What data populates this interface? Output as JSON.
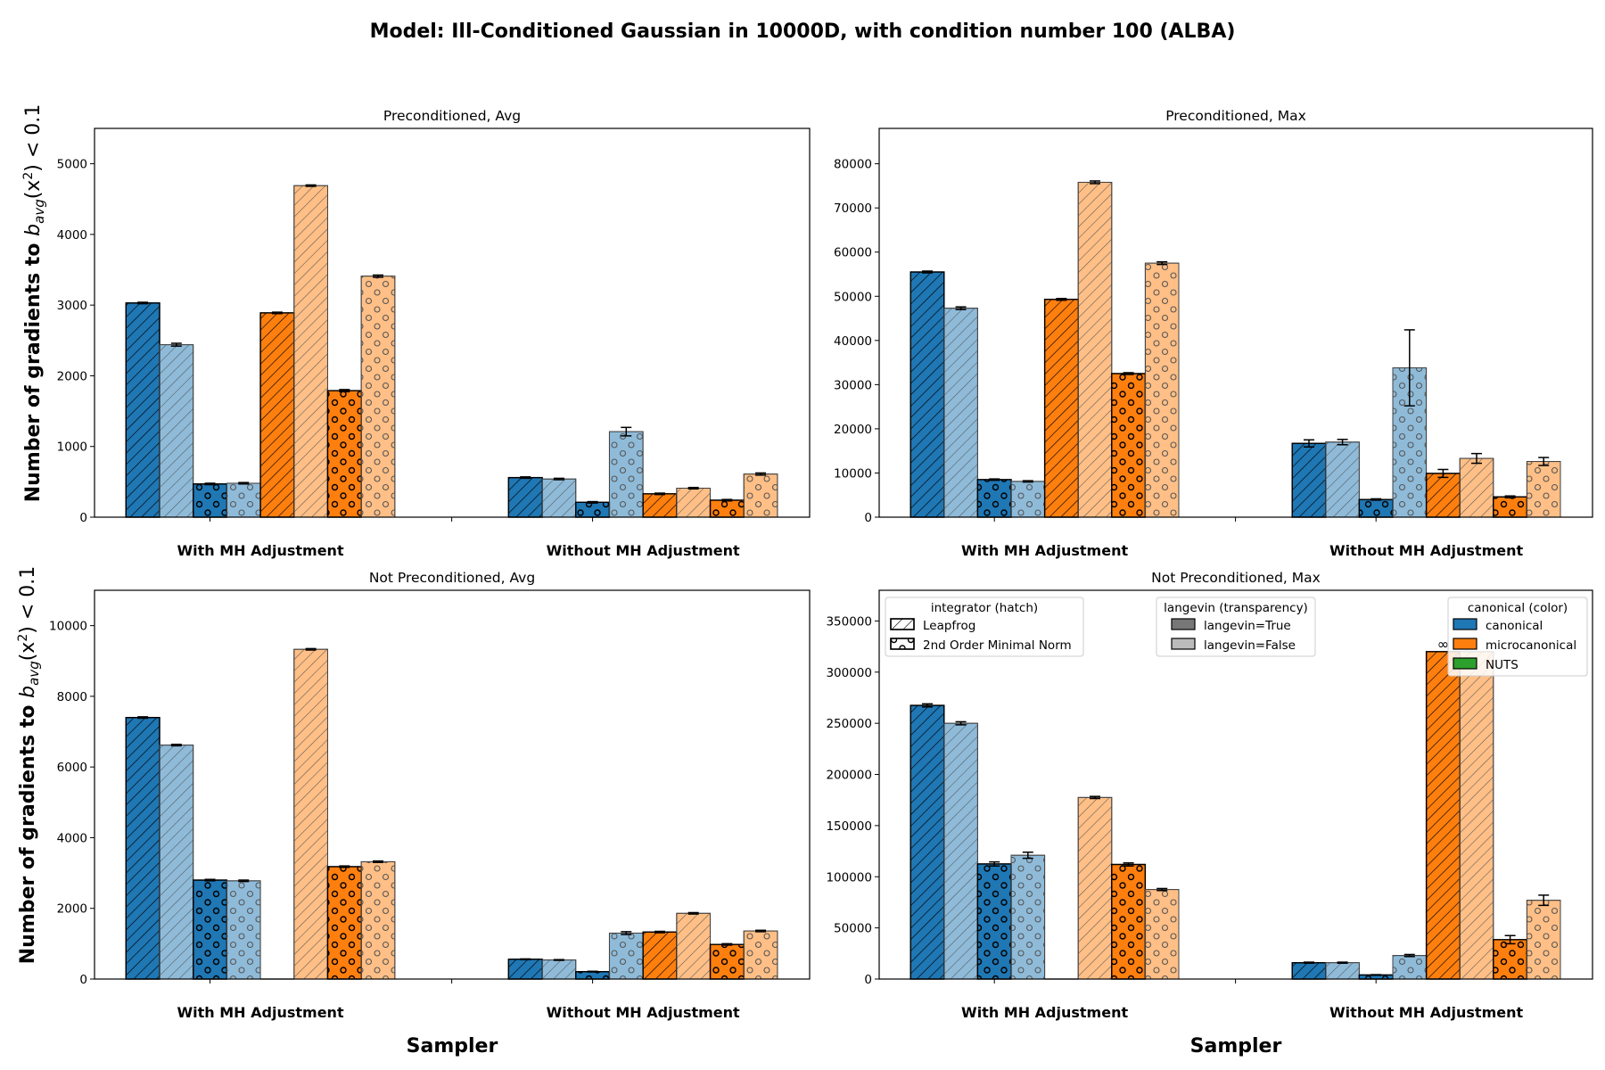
{
  "suptitle": "Model: Ill-Conditioned Gaussian in 10000D, with condition number 100 (ALBA)",
  "ylabel_prefix": "Number of gradients to ",
  "ylabel_math_b": "b",
  "ylabel_math_sub": "avg",
  "ylabel_math_rest": "(x",
  "ylabel_math_sup": "2",
  "ylabel_math_tail": ") < 0.1",
  "xlabel": "Sampler",
  "colors": {
    "canonical": "#1f77b4",
    "microcanonical": "#ff7f0e",
    "nuts": "#2ca02c",
    "langevin_false_alpha": 0.5
  },
  "legends": {
    "integrator": {
      "title": "integrator (hatch)",
      "entries": [
        "Leapfrog",
        "2nd Order Minimal Norm"
      ]
    },
    "langevin": {
      "title": "langevin (transparency)",
      "entries": [
        "langevin=True",
        "langevin=False"
      ]
    },
    "canonical": {
      "title": "canonical (color)",
      "entries": [
        "canonical",
        "microcanonical",
        "NUTS"
      ]
    }
  },
  "bar_order": [
    {
      "color": "canonical",
      "langevin": true,
      "hatch": "Leapfrog"
    },
    {
      "color": "canonical",
      "langevin": false,
      "hatch": "Leapfrog"
    },
    {
      "color": "canonical",
      "langevin": true,
      "hatch": "2nd Order Minimal Norm"
    },
    {
      "color": "canonical",
      "langevin": false,
      "hatch": "2nd Order Minimal Norm"
    },
    {
      "color": "microcanonical",
      "langevin": true,
      "hatch": "Leapfrog"
    },
    {
      "color": "microcanonical",
      "langevin": false,
      "hatch": "Leapfrog"
    },
    {
      "color": "microcanonical",
      "langevin": true,
      "hatch": "2nd Order Minimal Norm"
    },
    {
      "color": "microcanonical",
      "langevin": false,
      "hatch": "2nd Order Minimal Norm"
    }
  ],
  "chart_data": [
    {
      "type": "bar",
      "title": "Preconditioned, Avg",
      "categories": [
        "With MH Adjustment",
        "Without MH Adjustment"
      ],
      "ylim": [
        0,
        5500
      ],
      "yticks": [
        0,
        1000,
        2000,
        3000,
        4000,
        5000
      ],
      "grid": false,
      "groups": [
        {
          "values": [
            3030,
            2440,
            470,
            480,
            2890,
            4690,
            1790,
            3410
          ],
          "errors": [
            10,
            20,
            10,
            10,
            10,
            10,
            15,
            15
          ]
        },
        {
          "values": [
            560,
            540,
            210,
            1210,
            330,
            410,
            240,
            610
          ],
          "errors": [
            10,
            10,
            10,
            60,
            10,
            10,
            10,
            15
          ]
        }
      ]
    },
    {
      "type": "bar",
      "title": "Preconditioned, Max",
      "categories": [
        "With MH Adjustment",
        "Without MH Adjustment"
      ],
      "ylim": [
        0,
        88000
      ],
      "yticks": [
        0,
        10000,
        20000,
        30000,
        40000,
        50000,
        60000,
        70000,
        80000
      ],
      "grid": false,
      "groups": [
        {
          "values": [
            55500,
            47300,
            8500,
            8100,
            49300,
            75800,
            32500,
            57500
          ],
          "errors": [
            200,
            300,
            150,
            150,
            200,
            300,
            200,
            300
          ]
        },
        {
          "values": [
            16700,
            17000,
            4000,
            33800,
            9900,
            13300,
            4600,
            12600
          ],
          "errors": [
            800,
            600,
            150,
            8600,
            900,
            1100,
            200,
            900
          ]
        }
      ]
    },
    {
      "type": "bar",
      "title": "Not Preconditioned, Avg",
      "categories": [
        "With MH Adjustment",
        "Without MH Adjustment"
      ],
      "ylim": [
        0,
        11000
      ],
      "yticks": [
        0,
        2000,
        4000,
        6000,
        8000,
        10000
      ],
      "grid": false,
      "groups": [
        {
          "values": [
            7400,
            6620,
            2800,
            2780,
            0,
            9330,
            3180,
            3320
          ],
          "errors": [
            20,
            20,
            20,
            20,
            0,
            20,
            20,
            20
          ]
        },
        {
          "values": [
            560,
            540,
            210,
            1300,
            1330,
            1860,
            980,
            1360
          ],
          "errors": [
            10,
            10,
            10,
            40,
            20,
            20,
            20,
            20
          ]
        }
      ]
    },
    {
      "type": "bar",
      "title": "Not Preconditioned, Max",
      "categories": [
        "With MH Adjustment",
        "Without MH Adjustment"
      ],
      "ylim": [
        0,
        380000
      ],
      "yticks": [
        0,
        50000,
        100000,
        150000,
        200000,
        250000,
        300000,
        350000
      ],
      "grid": false,
      "infinite_marker": "∞",
      "groups": [
        {
          "values": [
            267500,
            250000,
            112500,
            121000,
            0,
            177500,
            112000,
            87500
          ],
          "errors": [
            1500,
            1500,
            2000,
            3000,
            0,
            1000,
            1500,
            1000
          ]
        },
        {
          "values": [
            16000,
            16000,
            4000,
            23000,
            320000,
            320000,
            38500,
            77000
          ],
          "errors": [
            500,
            500,
            300,
            1000,
            0,
            0,
            4000,
            5000
          ],
          "infinite": [
            false,
            false,
            false,
            false,
            true,
            false,
            false,
            false
          ]
        }
      ],
      "legend_position": "top"
    }
  ]
}
